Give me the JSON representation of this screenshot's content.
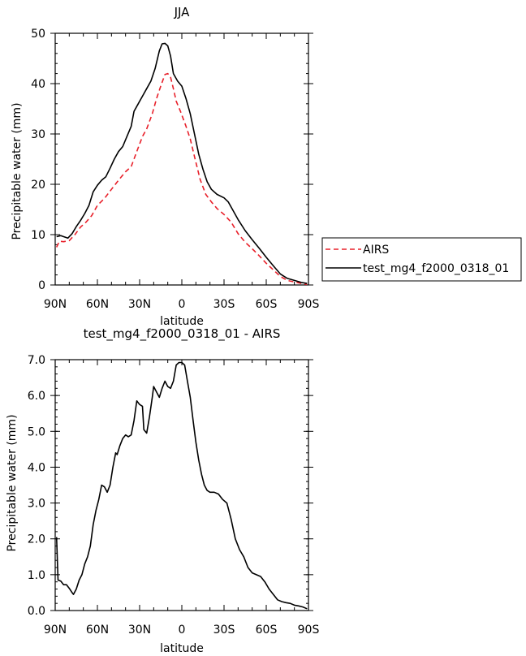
{
  "chart_data": [
    {
      "type": "line",
      "title": "JJA",
      "xlabel": "latitude",
      "ylabel": "Precipitable water (mm)",
      "xlim": [
        90,
        -90
      ],
      "ylim": [
        0,
        50
      ],
      "x_ticks": [
        90,
        60,
        30,
        0,
        -30,
        -60,
        -90
      ],
      "x_tick_labels": [
        "90N",
        "60N",
        "30N",
        "0",
        "30S",
        "60S",
        "90S"
      ],
      "y_ticks": [
        0,
        10,
        20,
        30,
        40,
        50
      ],
      "y_tick_labels": [
        "0",
        "10",
        "20",
        "30",
        "40",
        "50"
      ],
      "legend_position": "right",
      "series": [
        {
          "name": "AIRS",
          "color": "#e8202a",
          "dash": "dashed",
          "points": [
            [
              89,
              7.5
            ],
            [
              87,
              8.7
            ],
            [
              84,
              8.6
            ],
            [
              80,
              8.8
            ],
            [
              76,
              10
            ],
            [
              72,
              11.5
            ],
            [
              68,
              12.5
            ],
            [
              64,
              13.8
            ],
            [
              60,
              15.8
            ],
            [
              55,
              17.2
            ],
            [
              50,
              19
            ],
            [
              45,
              20.8
            ],
            [
              40,
              22.5
            ],
            [
              36,
              23.5
            ],
            [
              32,
              26.5
            ],
            [
              28,
              29.5
            ],
            [
              25,
              31
            ],
            [
              21,
              34
            ],
            [
              18,
              37
            ],
            [
              15,
              39.5
            ],
            [
              12,
              41.8
            ],
            [
              10,
              42
            ],
            [
              8,
              41.3
            ],
            [
              6,
              39
            ],
            [
              4,
              36.5
            ],
            [
              1,
              34.5
            ],
            [
              -3,
              31.5
            ],
            [
              -6,
              29
            ],
            [
              -9,
              25.5
            ],
            [
              -13,
              21
            ],
            [
              -17,
              18
            ],
            [
              -21,
              16.5
            ],
            [
              -25,
              15.2
            ],
            [
              -30,
              14
            ],
            [
              -35,
              12.5
            ],
            [
              -40,
              10.2
            ],
            [
              -45,
              8.5
            ],
            [
              -50,
              7.2
            ],
            [
              -55,
              5.8
            ],
            [
              -60,
              4.3
            ],
            [
              -65,
              3
            ],
            [
              -70,
              1.7
            ],
            [
              -75,
              0.9
            ],
            [
              -80,
              0.6
            ],
            [
              -85,
              0.3
            ],
            [
              -89,
              0.1
            ]
          ]
        },
        {
          "name": "test_mg4_f2000_0318_01",
          "color": "#000000",
          "dash": "solid",
          "points": [
            [
              89,
              9.6
            ],
            [
              86,
              9.8
            ],
            [
              84,
              9.6
            ],
            [
              81,
              9.3
            ],
            [
              78,
              10.2
            ],
            [
              75,
              11.6
            ],
            [
              72,
              12.8
            ],
            [
              69,
              14.2
            ],
            [
              66,
              15.8
            ],
            [
              63,
              18.5
            ],
            [
              60,
              19.8
            ],
            [
              57,
              20.8
            ],
            [
              54,
              21.5
            ],
            [
              51,
              23.2
            ],
            [
              48,
              25
            ],
            [
              45,
              26.5
            ],
            [
              42,
              27.5
            ],
            [
              39,
              29.5
            ],
            [
              36,
              31.5
            ],
            [
              34,
              34.5
            ],
            [
              31,
              36
            ],
            [
              28,
              37.5
            ],
            [
              25,
              39
            ],
            [
              22,
              40.5
            ],
            [
              19,
              43
            ],
            [
              16,
              46.5
            ],
            [
              14,
              47.9
            ],
            [
              12,
              48
            ],
            [
              10,
              47.5
            ],
            [
              8,
              45.5
            ],
            [
              6,
              42
            ],
            [
              3,
              40.5
            ],
            [
              0,
              39.5
            ],
            [
              -3,
              37
            ],
            [
              -6,
              34
            ],
            [
              -9,
              30
            ],
            [
              -12,
              26
            ],
            [
              -15,
              23
            ],
            [
              -18,
              20.5
            ],
            [
              -21,
              19
            ],
            [
              -25,
              18
            ],
            [
              -30,
              17.3
            ],
            [
              -33,
              16.5
            ],
            [
              -36,
              15
            ],
            [
              -40,
              13
            ],
            [
              -45,
              10.8
            ],
            [
              -50,
              9
            ],
            [
              -55,
              7.3
            ],
            [
              -60,
              5.5
            ],
            [
              -65,
              3.8
            ],
            [
              -70,
              2.2
            ],
            [
              -75,
              1.3
            ],
            [
              -80,
              0.9
            ],
            [
              -85,
              0.5
            ],
            [
              -89,
              0.3
            ]
          ]
        }
      ]
    },
    {
      "type": "line",
      "title": "test_mg4_f2000_0318_01 - AIRS",
      "xlabel": "latitude",
      "ylabel": "Precipitable water (mm)",
      "xlim": [
        90,
        -90
      ],
      "ylim": [
        0,
        7
      ],
      "x_ticks": [
        90,
        60,
        30,
        0,
        -30,
        -60,
        -90
      ],
      "x_tick_labels": [
        "90N",
        "60N",
        "30N",
        "0",
        "30S",
        "60S",
        "90S"
      ],
      "y_ticks": [
        0,
        1,
        2,
        3,
        4,
        5,
        6,
        7
      ],
      "y_tick_labels": [
        "0.0",
        "1.0",
        "2.0",
        "3.0",
        "4.0",
        "5.0",
        "6.0",
        "7.0"
      ],
      "series": [
        {
          "color": "#000000",
          "dash": "solid",
          "points": [
            [
              89,
              2.05
            ],
            [
              88,
              0.85
            ],
            [
              86,
              0.82
            ],
            [
              84,
              0.72
            ],
            [
              82,
              0.72
            ],
            [
              80,
              0.62
            ],
            [
              78,
              0.5
            ],
            [
              77,
              0.45
            ],
            [
              75,
              0.6
            ],
            [
              73,
              0.85
            ],
            [
              71,
              1.0
            ],
            [
              69,
              1.3
            ],
            [
              67,
              1.5
            ],
            [
              65,
              1.8
            ],
            [
              63,
              2.4
            ],
            [
              61,
              2.8
            ],
            [
              59,
              3.1
            ],
            [
              57,
              3.5
            ],
            [
              55,
              3.45
            ],
            [
              53,
              3.3
            ],
            [
              51,
              3.5
            ],
            [
              49,
              4.0
            ],
            [
              47,
              4.4
            ],
            [
              46,
              4.35
            ],
            [
              44,
              4.6
            ],
            [
              42,
              4.8
            ],
            [
              40,
              4.9
            ],
            [
              38,
              4.85
            ],
            [
              36,
              4.9
            ],
            [
              34,
              5.3
            ],
            [
              32,
              5.85
            ],
            [
              30,
              5.75
            ],
            [
              28,
              5.7
            ],
            [
              27,
              5.05
            ],
            [
              25,
              4.95
            ],
            [
              23,
              5.4
            ],
            [
              21,
              5.95
            ],
            [
              20,
              6.25
            ],
            [
              18,
              6.1
            ],
            [
              16,
              5.95
            ],
            [
              14,
              6.2
            ],
            [
              12,
              6.4
            ],
            [
              10,
              6.25
            ],
            [
              8,
              6.2
            ],
            [
              6,
              6.4
            ],
            [
              4,
              6.85
            ],
            [
              2,
              6.92
            ],
            [
              0,
              6.92
            ],
            [
              -2,
              6.85
            ],
            [
              -4,
              6.4
            ],
            [
              -6,
              5.95
            ],
            [
              -8,
              5.3
            ],
            [
              -10,
              4.7
            ],
            [
              -12,
              4.2
            ],
            [
              -14,
              3.8
            ],
            [
              -16,
              3.5
            ],
            [
              -18,
              3.35
            ],
            [
              -20,
              3.3
            ],
            [
              -23,
              3.3
            ],
            [
              -26,
              3.25
            ],
            [
              -29,
              3.1
            ],
            [
              -32,
              3.0
            ],
            [
              -35,
              2.55
            ],
            [
              -38,
              2.0
            ],
            [
              -41,
              1.7
            ],
            [
              -44,
              1.5
            ],
            [
              -47,
              1.2
            ],
            [
              -50,
              1.05
            ],
            [
              -53,
              1.0
            ],
            [
              -56,
              0.95
            ],
            [
              -59,
              0.8
            ],
            [
              -62,
              0.6
            ],
            [
              -65,
              0.45
            ],
            [
              -68,
              0.3
            ],
            [
              -71,
              0.25
            ],
            [
              -74,
              0.22
            ],
            [
              -77,
              0.2
            ],
            [
              -80,
              0.15
            ],
            [
              -83,
              0.13
            ],
            [
              -86,
              0.1
            ],
            [
              -89,
              0.05
            ]
          ]
        }
      ]
    }
  ]
}
